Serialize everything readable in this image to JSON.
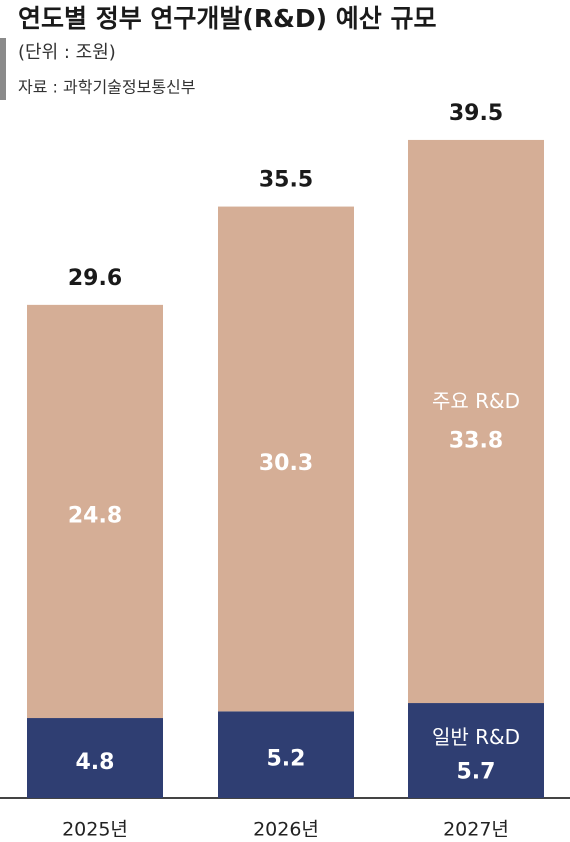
{
  "chart_data": {
    "type": "stacked-bar",
    "title": "연도별 정부 연구개발(R&D) 예산 규모",
    "subtitle": "(단위 : 조원)",
    "source": "자료 : 과학기술정보통신부",
    "categories": [
      "2025년",
      "2026년",
      "2027년"
    ],
    "series": [
      {
        "name": "일반 R&D",
        "color": "#2f3e72",
        "values": [
          4.8,
          5.2,
          5.7
        ]
      },
      {
        "name": "주요 R&D",
        "color": "#d5ae96",
        "values": [
          24.8,
          30.3,
          33.8
        ]
      }
    ],
    "totals": [
      29.6,
      35.5,
      39.5
    ]
  }
}
